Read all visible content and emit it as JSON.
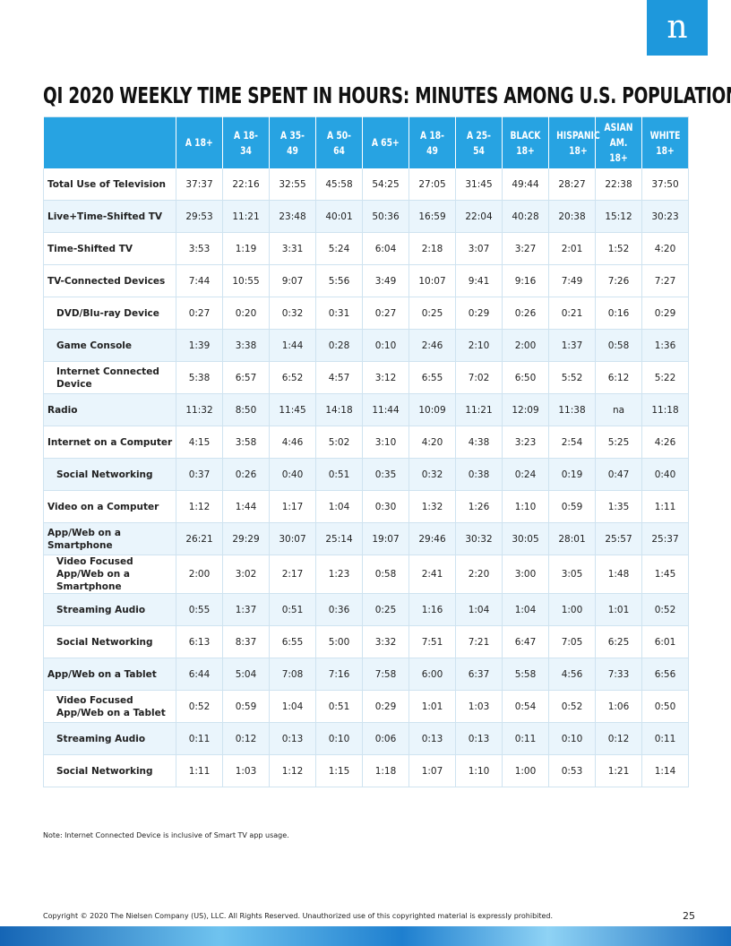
{
  "logo": "n",
  "title": "QI 2020 WEEKLY TIME SPENT IN HOURS: MINUTES AMONG U.S. POPULATION",
  "table": {
    "columns": [
      "A 18+",
      "A 18-34",
      "A 35-49",
      "A 50-64",
      "A 65+",
      "A 18-49",
      "A 25-54",
      "BLACK 18+",
      "HISPANIC 18+",
      "ASIAN AM. 18+",
      "WHITE 18+"
    ],
    "rows": [
      {
        "label": "Total Use of Television",
        "values": [
          "37:37",
          "22:16",
          "32:55",
          "45:58",
          "54:25",
          "27:05",
          "31:45",
          "49:44",
          "28:27",
          "22:38",
          "37:50"
        ]
      },
      {
        "label": "Live+Time-Shifted TV",
        "values": [
          "29:53",
          "11:21",
          "23:48",
          "40:01",
          "50:36",
          "16:59",
          "22:04",
          "40:28",
          "20:38",
          "15:12",
          "30:23"
        ]
      },
      {
        "label": "Time-Shifted TV",
        "values": [
          "3:53",
          "1:19",
          "3:31",
          "5:24",
          "6:04",
          "2:18",
          "3:07",
          "3:27",
          "2:01",
          "1:52",
          "4:20"
        ]
      },
      {
        "label": "TV-Connected Devices",
        "values": [
          "7:44",
          "10:55",
          "9:07",
          "5:56",
          "3:49",
          "10:07",
          "9:41",
          "9:16",
          "7:49",
          "7:26",
          "7:27"
        ]
      },
      {
        "label": "DVD/Blu-ray Device",
        "values": [
          "0:27",
          "0:20",
          "0:32",
          "0:31",
          "0:27",
          "0:25",
          "0:29",
          "0:26",
          "0:21",
          "0:16",
          "0:29"
        ]
      },
      {
        "label": "Game Console",
        "values": [
          "1:39",
          "3:38",
          "1:44",
          "0:28",
          "0:10",
          "2:46",
          "2:10",
          "2:00",
          "1:37",
          "0:58",
          "1:36"
        ]
      },
      {
        "label": "Internet Connected Device",
        "values": [
          "5:38",
          "6:57",
          "6:52",
          "4:57",
          "3:12",
          "6:55",
          "7:02",
          "6:50",
          "5:52",
          "6:12",
          "5:22"
        ]
      },
      {
        "label": "Radio",
        "values": [
          "11:32",
          "8:50",
          "11:45",
          "14:18",
          "11:44",
          "10:09",
          "11:21",
          "12:09",
          "11:38",
          "na",
          "11:18"
        ]
      },
      {
        "label": "Internet on a Computer",
        "values": [
          "4:15",
          "3:58",
          "4:46",
          "5:02",
          "3:10",
          "4:20",
          "4:38",
          "3:23",
          "2:54",
          "5:25",
          "4:26"
        ]
      },
      {
        "label": "Social Networking",
        "values": [
          "0:37",
          "0:26",
          "0:40",
          "0:51",
          "0:35",
          "0:32",
          "0:38",
          "0:24",
          "0:19",
          "0:47",
          "0:40"
        ]
      },
      {
        "label": "Video on a Computer",
        "values": [
          "1:12",
          "1:44",
          "1:17",
          "1:04",
          "0:30",
          "1:32",
          "1:26",
          "1:10",
          "0:59",
          "1:35",
          "1:11"
        ]
      },
      {
        "label": "App/Web on a Smartphone",
        "values": [
          "26:21",
          "29:29",
          "30:07",
          "25:14",
          "19:07",
          "29:46",
          "30:32",
          "30:05",
          "28:01",
          "25:57",
          "25:37"
        ]
      },
      {
        "label": "Video Focused App/Web on a Smartphone",
        "values": [
          "2:00",
          "3:02",
          "2:17",
          "1:23",
          "0:58",
          "2:41",
          "2:20",
          "3:00",
          "3:05",
          "1:48",
          "1:45"
        ]
      },
      {
        "label": "Streaming Audio",
        "values": [
          "0:55",
          "1:37",
          "0:51",
          "0:36",
          "0:25",
          "1:16",
          "1:04",
          "1:04",
          "1:00",
          "1:01",
          "0:52"
        ]
      },
      {
        "label": "Social Networking",
        "values": [
          "6:13",
          "8:37",
          "6:55",
          "5:00",
          "3:32",
          "7:51",
          "7:21",
          "6:47",
          "7:05",
          "6:25",
          "6:01"
        ]
      },
      {
        "label": "App/Web on a Tablet",
        "values": [
          "6:44",
          "5:04",
          "7:08",
          "7:16",
          "7:58",
          "6:00",
          "6:37",
          "5:58",
          "4:56",
          "7:33",
          "6:56"
        ]
      },
      {
        "label": "Video Focused App/Web on a Tablet",
        "values": [
          "0:52",
          "0:59",
          "1:04",
          "0:51",
          "0:29",
          "1:01",
          "1:03",
          "0:54",
          "0:52",
          "1:06",
          "0:50"
        ]
      },
      {
        "label": "Streaming Audio",
        "values": [
          "0:11",
          "0:12",
          "0:13",
          "0:10",
          "0:06",
          "0:13",
          "0:13",
          "0:11",
          "0:10",
          "0:12",
          "0:11"
        ]
      },
      {
        "label": "Social Networking",
        "values": [
          "1:11",
          "1:03",
          "1:12",
          "1:15",
          "1:18",
          "1:07",
          "1:10",
          "1:00",
          "0:53",
          "1:21",
          "1:14"
        ]
      }
    ]
  },
  "note": "Note: Internet Connected Device is inclusive of Smart TV app usage.",
  "footer": {
    "copyright": "Copyright © 2020 The Nielsen Company (US), LLC. All Rights Reserved. Unauthorized use of this copyrighted material is expressly prohibited.",
    "page": "25"
  }
}
